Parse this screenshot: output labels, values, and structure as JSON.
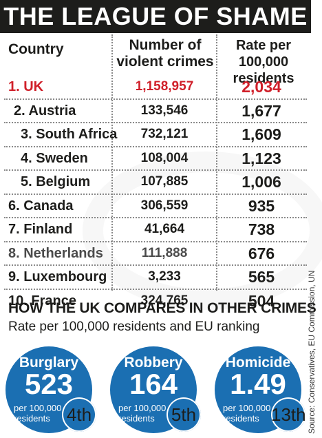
{
  "title": "THE LEAGUE OF SHAME",
  "columns": {
    "country": "Country",
    "crimes_line1": "Number of",
    "crimes_line2": "violent crimes",
    "rate_line1": "Rate per 100,000",
    "rate_line2": "residents"
  },
  "chart_data": {
    "type": "table",
    "title": "THE LEAGUE OF SHAME",
    "columns": [
      "Country",
      "Number of violent crimes",
      "Rate per 100,000 residents"
    ],
    "rows": [
      {
        "country": "1. UK",
        "crimes": "1,158,957",
        "rate": "2,034"
      },
      {
        "country": "2. Austria",
        "crimes": "133,546",
        "rate": "1,677"
      },
      {
        "country": "3. South Africa",
        "crimes": "732,121",
        "rate": "1,609"
      },
      {
        "country": "4. Sweden",
        "crimes": "108,004",
        "rate": "1,123"
      },
      {
        "country": "5. Belgium",
        "crimes": "107,885",
        "rate": "1,006"
      },
      {
        "country": "6. Canada",
        "crimes": "306,559",
        "rate": "935"
      },
      {
        "country": "7. Finland",
        "crimes": "41,664",
        "rate": "738"
      },
      {
        "country": "8. Netherlands",
        "crimes": "111,888",
        "rate": "676"
      },
      {
        "country": "9. Luxembourg",
        "crimes": "3,233",
        "rate": "565"
      },
      {
        "country": "10. France",
        "crimes": "324,765",
        "rate": "504"
      }
    ],
    "highlight_color": "#d0202a",
    "text_color": "#1d1d1b"
  },
  "compare": {
    "heading": "HOW THE UK COMPARES IN OTHER CRIMES",
    "subheading": "Rate per 100,000 residents and EU ranking",
    "bubble_color": "#1b6fb2",
    "items": [
      {
        "name": "Burglary",
        "value": "523",
        "unit_line1": "per 100,000",
        "unit_line2": "residents",
        "rank": "4th"
      },
      {
        "name": "Robbery",
        "value": "164",
        "unit_line1": "per 100,000",
        "unit_line2": "residents",
        "rank": "5th"
      },
      {
        "name": "Homicide",
        "value": "1.49",
        "unit_line1": "per 100,000",
        "unit_line2": "residents",
        "rank": "13th"
      }
    ]
  },
  "source": "Source: Conservatives, EU Commission, UN"
}
